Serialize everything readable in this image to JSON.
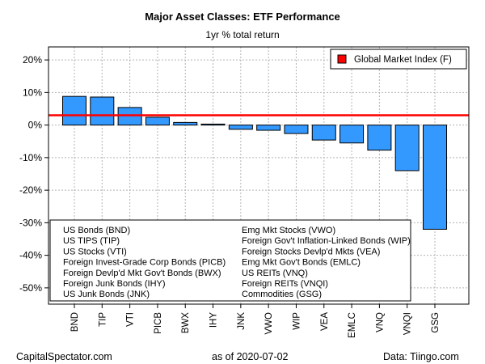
{
  "chart_data": {
    "type": "bar",
    "title": "Major Asset Classes: ETF Performance",
    "subtitle": "1yr % total return",
    "categories": [
      "BND",
      "TIP",
      "VTI",
      "PICB",
      "BWX",
      "IHY",
      "JNK",
      "VWO",
      "WIP",
      "VEA",
      "EMLC",
      "VNQ",
      "VNQI",
      "GSG"
    ],
    "values": [
      8.8,
      8.6,
      5.4,
      2.4,
      0.8,
      0.3,
      -1.3,
      -1.6,
      -2.6,
      -4.6,
      -5.5,
      -7.7,
      -14.0,
      -32.0
    ],
    "reference_line": {
      "name": "Global Market Index (F)",
      "value": 3.0,
      "color": "#ff0000"
    },
    "ylim": [
      -55,
      24
    ],
    "yticks": [
      20,
      10,
      0,
      -10,
      -20,
      -30,
      -40,
      -50
    ],
    "ytick_labels": [
      "20%",
      "10%",
      "0%",
      "-10%",
      "-20%",
      "-30%",
      "-40%",
      "-50%"
    ],
    "bar_color": "#3399ff",
    "grid": true,
    "legend": {
      "placement": "top-right",
      "entries": [
        "Global Market Index (F)"
      ]
    },
    "key_box": {
      "left_column": [
        "US Bonds (BND)",
        "US TIPS (TIP)",
        "US Stocks (VTI)",
        "Foreign Invest-Grade Corp Bonds (PICB)",
        "Foreign Devlp'd Mkt Gov't Bonds (BWX)",
        "Foreign Junk Bonds (IHY)",
        "US Junk Bonds (JNK)"
      ],
      "right_column": [
        "Emg Mkt Stocks (VWO)",
        "Foreign Gov't Inflation-Linked Bonds (WIP)",
        "Foreign Stocks Devlp'd Mkts (VEA)",
        "Emg Mkt Gov't Bonds (EMLC)",
        "US REITs (VNQ)",
        "Foreign REITs (VNQI)",
        "Commodities (GSG)"
      ]
    }
  },
  "footer": {
    "left": "CapitalSpectator.com",
    "date": "as of   2020-07-02",
    "right": "Data: Tiingo.com"
  }
}
